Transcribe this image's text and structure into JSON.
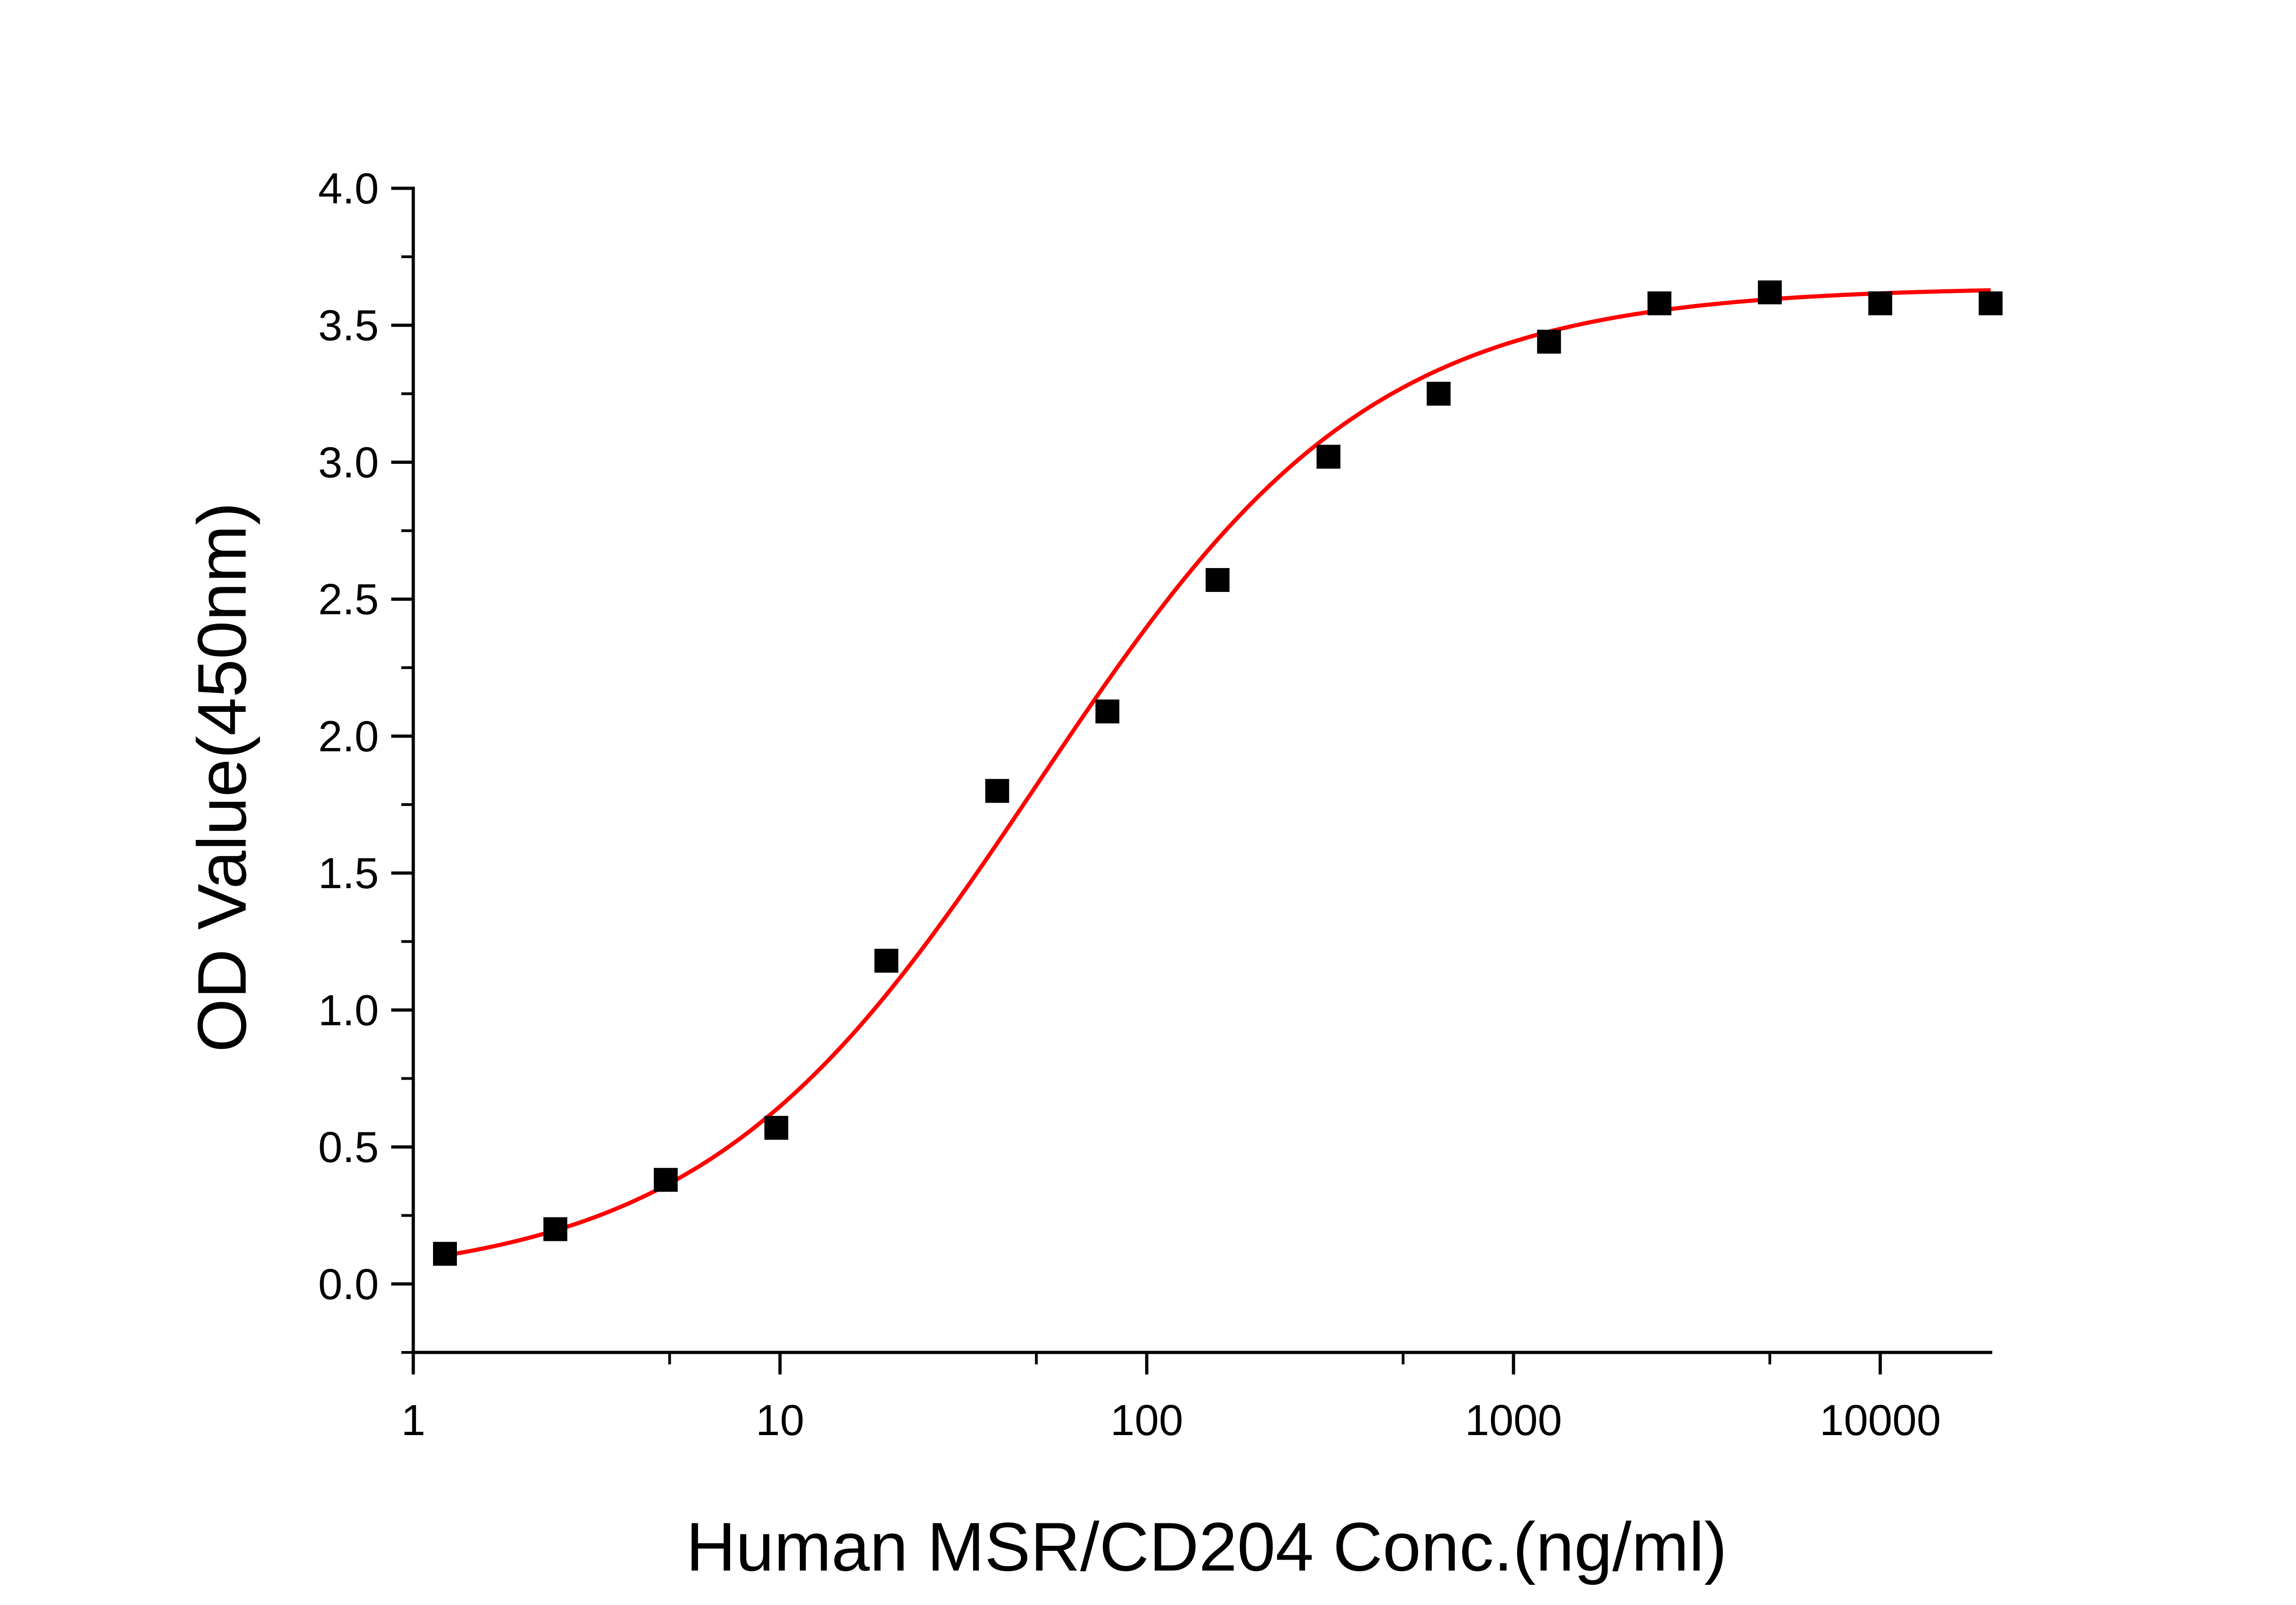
{
  "chart_data": {
    "type": "scatter",
    "title": "",
    "xlabel": "Human MSR/CD204 Conc.(ng/ml)",
    "ylabel": "OD Value(450nm)",
    "x_scale": "log",
    "xlim": [
      1,
      20000
    ],
    "ylim": [
      -0.25,
      4.0
    ],
    "x_ticks": [
      {
        "value": 1,
        "label": "1"
      },
      {
        "value": 10,
        "label": "10"
      },
      {
        "value": 100,
        "label": "100"
      },
      {
        "value": 1000,
        "label": "1000"
      },
      {
        "value": 10000,
        "label": "10000"
      }
    ],
    "y_ticks": [
      {
        "value": 0.0,
        "label": "0.0"
      },
      {
        "value": 0.5,
        "label": "0.5"
      },
      {
        "value": 1.0,
        "label": "1.0"
      },
      {
        "value": 1.5,
        "label": "1.5"
      },
      {
        "value": 2.0,
        "label": "2.0"
      },
      {
        "value": 2.5,
        "label": "2.5"
      },
      {
        "value": 3.0,
        "label": "3.0"
      },
      {
        "value": 3.5,
        "label": "3.5"
      },
      {
        "value": 4.0,
        "label": "4.0"
      }
    ],
    "grid": false,
    "legend": "none",
    "series": [
      {
        "marker": "square",
        "color": "#000000",
        "x": [
          1.22,
          2.44,
          4.88,
          9.77,
          19.5,
          39.1,
          78.1,
          156,
          313,
          625,
          1250,
          2500,
          5000,
          10000,
          20000
        ],
        "y": [
          0.11,
          0.2,
          0.38,
          0.57,
          1.18,
          1.8,
          2.09,
          2.57,
          3.02,
          3.25,
          3.44,
          3.58,
          3.62,
          3.58,
          3.58
        ]
      }
    ],
    "fit_curve": {
      "type": "4PL",
      "color": "#ff0000",
      "bottom": 0.0,
      "top": 3.64,
      "ec50": 50,
      "hill": 0.95,
      "x_range": [
        1.22,
        20000
      ]
    }
  }
}
